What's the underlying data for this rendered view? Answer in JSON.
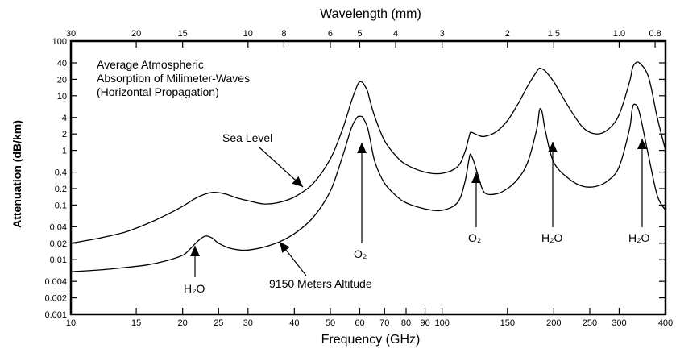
{
  "chart_data": {
    "type": "line",
    "title": "",
    "xlabel": "Frequency (GHz)",
    "ylabel": "Attenuation (dB/km)",
    "x2label": "Wavelength (mm)",
    "xscale": "log",
    "yscale": "log",
    "xlim": [
      10,
      400
    ],
    "ylim": [
      0.001,
      100
    ],
    "grid": false,
    "x_ticks": [
      "10",
      "15",
      "20",
      "25",
      "30",
      "40",
      "50",
      "60",
      "70",
      "80",
      "90",
      "100",
      "150",
      "200",
      "250",
      "300",
      "400"
    ],
    "x2_ticks": [
      "30",
      "20",
      "15",
      "10",
      "8",
      "6",
      "5",
      "4",
      "3",
      "2",
      "1.5",
      "1.0",
      "0.8"
    ],
    "y_ticks": [
      "100",
      "40",
      "20",
      "10",
      "4",
      "2",
      "1",
      "0.4",
      "0.2",
      "0.1",
      "0.04",
      "0.02",
      "0.01",
      "0.004",
      "0.002",
      "0.001"
    ],
    "annotations": {
      "box_line1": "Average Atmospheric",
      "box_line2": "Absorption of Milimeter-Waves",
      "box_line3": "(Horizontal Propagation)",
      "sea_level": "Sea Level",
      "altitude": "9150 Meters Altitude",
      "h2o_22": "H₂O",
      "o2_60": "O₂",
      "o2_119": "O₂",
      "h2o_183": "H₂O",
      "h2o_325": "H₂O"
    },
    "series": [
      {
        "name": "Sea Level",
        "x": [
          10,
          12,
          14,
          16,
          18,
          20,
          22,
          24,
          26,
          28,
          30,
          33,
          36,
          40,
          45,
          50,
          54,
          57,
          59,
          60,
          61,
          62,
          63,
          64,
          66,
          70,
          75,
          80,
          90,
          100,
          110,
          115,
          118,
          119,
          120,
          122,
          125,
          130,
          140,
          150,
          160,
          170,
          180,
          183,
          186,
          190,
          200,
          220,
          240,
          260,
          280,
          300,
          320,
          325,
          330,
          340,
          360,
          380,
          400
        ],
        "y": [
          0.02,
          0.025,
          0.032,
          0.045,
          0.065,
          0.095,
          0.14,
          0.17,
          0.16,
          0.135,
          0.12,
          0.105,
          0.11,
          0.14,
          0.25,
          0.7,
          2.5,
          8,
          15,
          18,
          17.5,
          15,
          12,
          8,
          4,
          1.5,
          0.8,
          0.55,
          0.4,
          0.38,
          0.5,
          0.9,
          1.7,
          2.1,
          2.15,
          2.05,
          1.9,
          1.8,
          2.2,
          3.5,
          7,
          15,
          28,
          32,
          31,
          28,
          18,
          6,
          2.6,
          2,
          2.4,
          4.5,
          18,
          30,
          38,
          40,
          22,
          4,
          1
        ]
      },
      {
        "name": "9150 Meters Altitude",
        "x": [
          10,
          12,
          14,
          16,
          18,
          20,
          21,
          22,
          23,
          24,
          25,
          27,
          30,
          35,
          40,
          45,
          50,
          54,
          57,
          59,
          60,
          61,
          62,
          63,
          64,
          66,
          70,
          75,
          80,
          90,
          100,
          110,
          115,
          118,
          119,
          120,
          122,
          125,
          130,
          140,
          150,
          160,
          170,
          180,
          183,
          186,
          190,
          200,
          220,
          240,
          260,
          280,
          300,
          320,
          325,
          330,
          340,
          360,
          380,
          400
        ],
        "y": [
          0.006,
          0.0065,
          0.0072,
          0.008,
          0.0095,
          0.012,
          0.016,
          0.022,
          0.027,
          0.025,
          0.02,
          0.016,
          0.015,
          0.019,
          0.03,
          0.06,
          0.18,
          0.8,
          2.6,
          4,
          4.2,
          4.1,
          3.4,
          2.6,
          1.6,
          0.6,
          0.25,
          0.15,
          0.11,
          0.085,
          0.08,
          0.11,
          0.25,
          0.65,
          0.85,
          0.8,
          0.6,
          0.35,
          0.17,
          0.16,
          0.2,
          0.3,
          0.6,
          2.5,
          5.5,
          5,
          2.2,
          0.6,
          0.3,
          0.22,
          0.22,
          0.28,
          0.5,
          2.5,
          5.5,
          7,
          5,
          0.8,
          0.15,
          0.08
        ]
      }
    ]
  }
}
